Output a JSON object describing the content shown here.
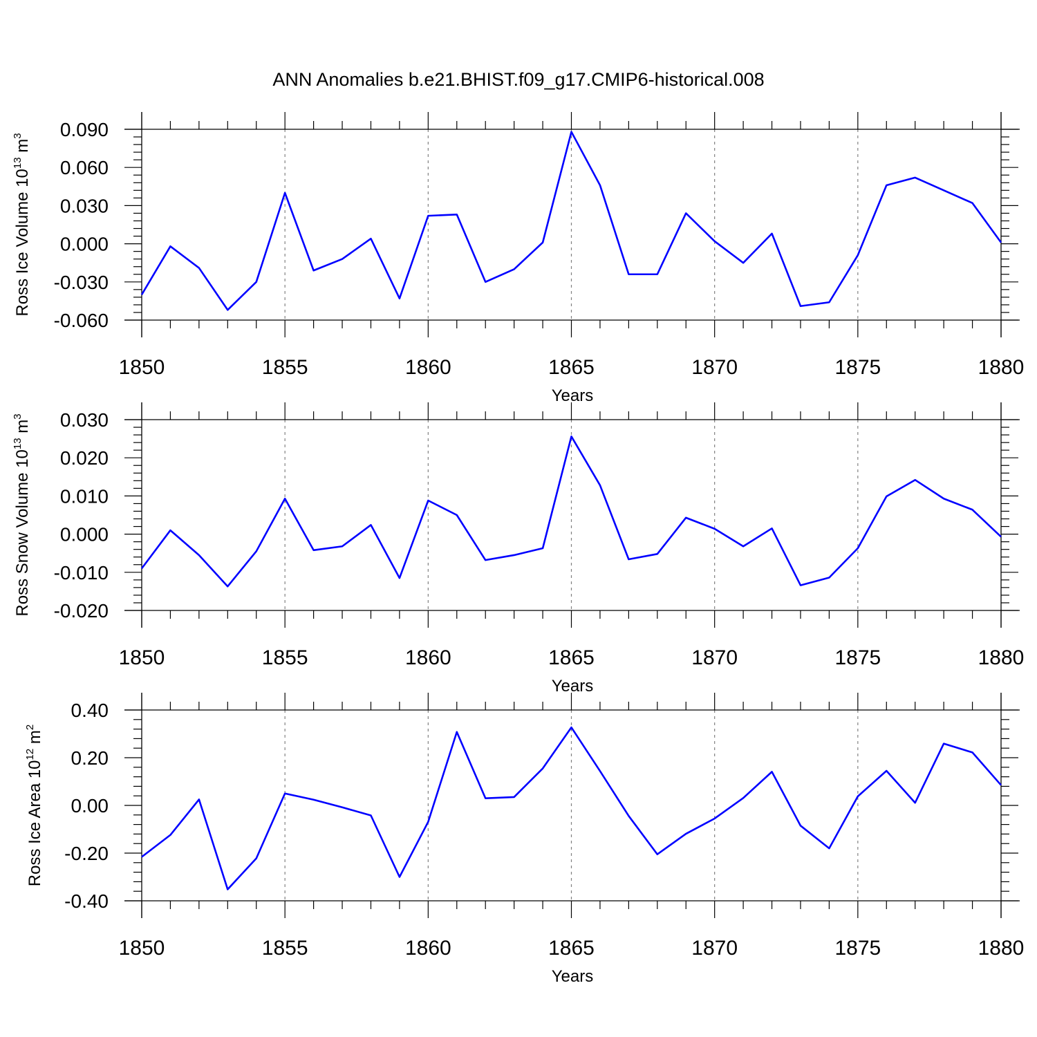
{
  "figure": {
    "title": "ANN Anomalies b.e21.BHIST.f09_g17.CMIP6-historical.008",
    "line_color": "#0000ff",
    "axis_color": "#000000",
    "grid_color": "#808080"
  },
  "chart_data": [
    {
      "type": "line",
      "title": "",
      "xlabel": "Years",
      "ylabel": "Ross Ice Volume 10",
      "ylabel_exp": "13",
      "ylabel_unit": " m",
      "ylabel_unit_exp": "3",
      "xlim": [
        1850,
        1880
      ],
      "ylim": [
        -0.06,
        0.09
      ],
      "xticks": [
        "1850",
        "1855",
        "1860",
        "1865",
        "1870",
        "1875",
        "1880"
      ],
      "yticks": [
        "-0.060",
        "-0.030",
        "0.000",
        "0.030",
        "0.060",
        "0.090"
      ],
      "grid": "vertical dashed at major x ticks",
      "series": [
        {
          "x": [
            1850,
            1851,
            1852,
            1853,
            1854,
            1855,
            1856,
            1857,
            1858,
            1859,
            1860,
            1861,
            1862,
            1863,
            1864,
            1865,
            1866,
            1867,
            1868,
            1869,
            1870,
            1871,
            1872,
            1873,
            1874,
            1875,
            1876,
            1877,
            1878,
            1879,
            1880
          ],
          "values": [
            -0.04,
            -0.002,
            -0.019,
            -0.052,
            -0.03,
            0.04,
            -0.021,
            -0.012,
            0.004,
            -0.043,
            0.022,
            0.023,
            -0.03,
            -0.02,
            0.001,
            0.088,
            0.046,
            -0.024,
            -0.024,
            0.024,
            0.002,
            -0.015,
            0.008,
            -0.049,
            -0.046,
            -0.009,
            0.046,
            0.052,
            0.042,
            0.032,
            0.001
          ]
        }
      ]
    },
    {
      "type": "line",
      "title": "",
      "xlabel": "Years",
      "ylabel": "Ross Snow Volume 10",
      "ylabel_exp": "13",
      "ylabel_unit": " m",
      "ylabel_unit_exp": "3",
      "xlim": [
        1850,
        1880
      ],
      "ylim": [
        -0.02,
        0.03
      ],
      "xticks": [
        "1850",
        "1855",
        "1860",
        "1865",
        "1870",
        "1875",
        "1880"
      ],
      "yticks": [
        "-0.020",
        "-0.010",
        "0.000",
        "0.010",
        "0.020",
        "0.030"
      ],
      "grid": "vertical dashed at major x ticks",
      "series": [
        {
          "x": [
            1850,
            1851,
            1852,
            1853,
            1854,
            1855,
            1856,
            1857,
            1858,
            1859,
            1860,
            1861,
            1862,
            1863,
            1864,
            1865,
            1866,
            1867,
            1868,
            1869,
            1870,
            1871,
            1872,
            1873,
            1874,
            1875,
            1876,
            1877,
            1878,
            1879,
            1880
          ],
          "values": [
            -0.009,
            0.001,
            -0.0055,
            -0.0137,
            -0.0045,
            0.0093,
            -0.0042,
            -0.0032,
            0.0024,
            -0.0115,
            0.0088,
            0.005,
            -0.0068,
            -0.0055,
            -0.0037,
            0.0256,
            0.0128,
            -0.0066,
            -0.0052,
            0.0043,
            0.0014,
            -0.0032,
            0.0015,
            -0.0134,
            -0.0114,
            -0.0037,
            0.0099,
            0.0142,
            0.0093,
            0.0064,
            -0.0007
          ]
        }
      ]
    },
    {
      "type": "line",
      "title": "",
      "xlabel": "Years",
      "ylabel": "Ross Ice Area 10",
      "ylabel_exp": "12",
      "ylabel_unit": " m",
      "ylabel_unit_exp": "2",
      "xlim": [
        1850,
        1880
      ],
      "ylim": [
        -0.4,
        0.4
      ],
      "xticks": [
        "1850",
        "1855",
        "1860",
        "1865",
        "1870",
        "1875",
        "1880"
      ],
      "yticks": [
        "-0.40",
        "-0.20",
        "0.00",
        "0.20",
        "0.40"
      ],
      "grid": "vertical dashed at major x ticks",
      "series": [
        {
          "x": [
            1850,
            1851,
            1852,
            1853,
            1854,
            1855,
            1856,
            1857,
            1858,
            1859,
            1860,
            1861,
            1862,
            1863,
            1864,
            1865,
            1866,
            1867,
            1868,
            1869,
            1870,
            1871,
            1872,
            1873,
            1874,
            1875,
            1876,
            1877,
            1878,
            1879,
            1880
          ],
          "values": [
            -0.216,
            -0.124,
            0.025,
            -0.352,
            -0.222,
            0.05,
            0.024,
            -0.008,
            -0.042,
            -0.3,
            -0.069,
            0.308,
            0.03,
            0.035,
            0.155,
            0.327,
            0.144,
            -0.044,
            -0.205,
            -0.119,
            -0.055,
            0.031,
            0.141,
            -0.085,
            -0.18,
            0.038,
            0.145,
            0.011,
            0.259,
            0.222,
            0.085
          ]
        }
      ]
    }
  ]
}
